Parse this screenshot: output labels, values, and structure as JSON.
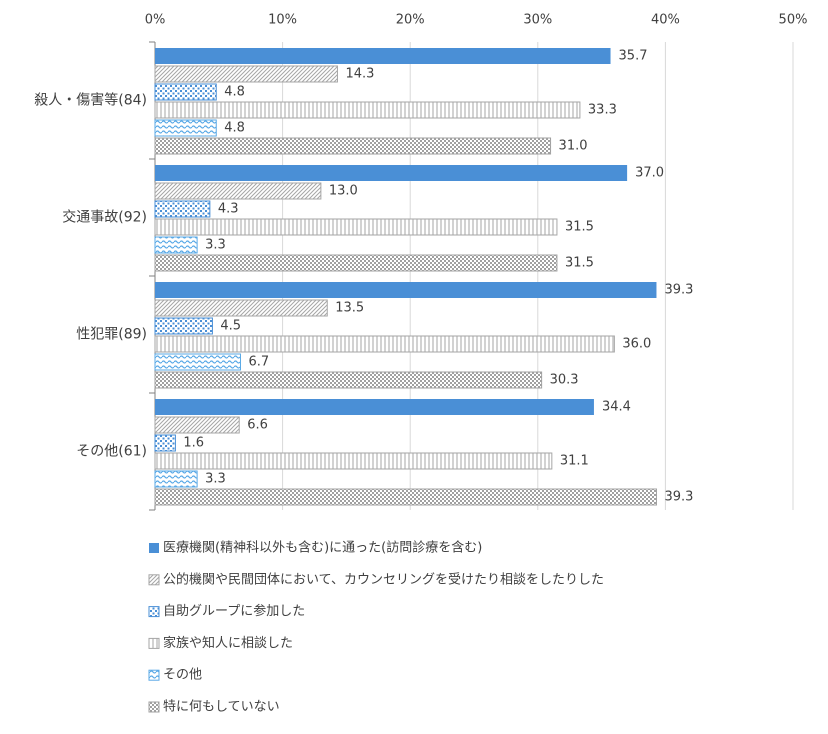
{
  "chart_data": {
    "type": "bar",
    "orientation": "horizontal",
    "categories": [
      "殺人・傷害等(84)",
      "交通事故(92)",
      "性犯罪(89)",
      "その他(61)"
    ],
    "series": [
      {
        "name": "医療機関(精神科以外も含む)に通った(訪問診療を含む)",
        "color": "#4a8fd6",
        "pattern": "solid",
        "values": [
          35.7,
          37.0,
          39.3,
          34.4
        ],
        "value_labels": [
          "35.7",
          "37.0",
          "39.3",
          "34.4"
        ]
      },
      {
        "name": "公的機関や民間団体において、カウンセリングを受けたり相談をしたりした",
        "color": "#a6a6a6",
        "pattern": "diagonal",
        "values": [
          14.3,
          13.0,
          13.5,
          6.6
        ],
        "value_labels": [
          "14.3",
          "13.0",
          "13.5",
          "6.6"
        ]
      },
      {
        "name": "自助グループに参加した",
        "color": "#4a8fd6",
        "pattern": "dots",
        "values": [
          4.8,
          4.3,
          4.5,
          1.6
        ],
        "value_labels": [
          "4.8",
          "4.3",
          "4.5",
          "1.6"
        ]
      },
      {
        "name": "家族や知人に相談した",
        "color": "#a6a6a6",
        "pattern": "vertical",
        "values": [
          33.3,
          31.5,
          36.0,
          31.1
        ],
        "value_labels": [
          "33.3",
          "31.5",
          "36.0",
          "31.1"
        ]
      },
      {
        "name": "その他",
        "color": "#5aa9e6",
        "pattern": "wave",
        "values": [
          4.8,
          3.3,
          6.7,
          3.3
        ],
        "value_labels": [
          "4.8",
          "3.3",
          "6.7",
          "3.3"
        ]
      },
      {
        "name": "特に何もしていない",
        "color": "#a0a0a0",
        "pattern": "checker",
        "values": [
          31.0,
          31.5,
          30.3,
          39.3
        ],
        "value_labels": [
          "31.0",
          "31.5",
          "30.3",
          "39.3"
        ]
      }
    ],
    "xlim": [
      0,
      50
    ],
    "xticks": [
      {
        "value": 0,
        "label": "0%"
      },
      {
        "value": 10,
        "label": "10%"
      },
      {
        "value": 20,
        "label": "20%"
      },
      {
        "value": 30,
        "label": "30%"
      },
      {
        "value": 40,
        "label": "40%"
      },
      {
        "value": 50,
        "label": "50%"
      }
    ],
    "grid": true,
    "legend": "bottom"
  }
}
